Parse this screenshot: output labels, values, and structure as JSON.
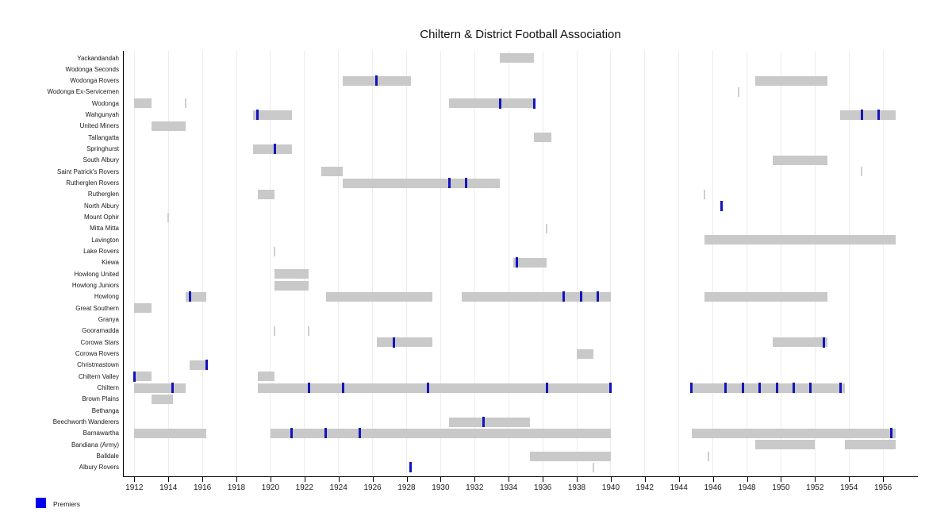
{
  "page": {
    "title": "Chiltern & District Football Association"
  },
  "chart_data": {
    "type": "gantt",
    "title": "Chiltern & District Football Association",
    "xlabel": "",
    "ylabel": "",
    "x_axis": {
      "min": 1912,
      "max": 1956,
      "tick_step": 2,
      "ticks": [
        1912,
        1914,
        1916,
        1918,
        1920,
        1922,
        1924,
        1926,
        1928,
        1930,
        1932,
        1934,
        1936,
        1938,
        1940,
        1942,
        1944,
        1946,
        1948,
        1950,
        1952,
        1954,
        1956
      ]
    },
    "legend": {
      "label": "Premiers",
      "color": "#0000ee",
      "position": "bottom-left"
    },
    "grid": "vertical-on",
    "colors": {
      "bar": "#c9c9c9",
      "thin_bar": "#cfcfcf",
      "premier": "#1414bd",
      "grid": "#ededed",
      "axis": "#000000",
      "text": "#1a1a1a"
    },
    "teams": [
      {
        "name": "Yackandandah",
        "segments": [
          [
            1933.5,
            1935.5
          ]
        ],
        "premiers": []
      },
      {
        "name": "Wodonga Seconds",
        "segments": [],
        "premiers": []
      },
      {
        "name": "Wodonga Rovers",
        "segments": [
          [
            1924.25,
            1928.25
          ],
          [
            1948.5,
            1952.75
          ]
        ],
        "premiers": [
          1926.25
        ]
      },
      {
        "name": "Wodonga Ex-Servicemen",
        "segments": [
          [
            1947.5,
            1947.5
          ]
        ],
        "premiers": []
      },
      {
        "name": "Wodonga",
        "segments": [
          [
            1912,
            1913
          ],
          [
            1915,
            1915
          ],
          [
            1930.5,
            1935.5
          ]
        ],
        "premiers": [
          1933.5,
          1935.5
        ]
      },
      {
        "name": "Wahgunyah",
        "segments": [
          [
            1919,
            1921.25
          ],
          [
            1953.5,
            1956.75
          ]
        ],
        "premiers": [
          1919.25,
          1954.75,
          1955.75
        ]
      },
      {
        "name": "United Miners",
        "segments": [
          [
            1913,
            1915
          ]
        ],
        "premiers": []
      },
      {
        "name": "Tallangatta",
        "segments": [
          [
            1935.5,
            1936.5
          ]
        ],
        "premiers": []
      },
      {
        "name": "Springhurst",
        "segments": [
          [
            1919,
            1921.25
          ]
        ],
        "premiers": [
          1920.25
        ]
      },
      {
        "name": "South Albury",
        "segments": [
          [
            1949.5,
            1952.75
          ]
        ],
        "premiers": []
      },
      {
        "name": "Saint Patrick's Rovers",
        "segments": [
          [
            1923,
            1924.25
          ],
          [
            1954.75,
            1954.75
          ]
        ],
        "premiers": []
      },
      {
        "name": "Rutherglen Rovers",
        "segments": [
          [
            1924.25,
            1933.5
          ]
        ],
        "premiers": [
          1930.5,
          1931.5
        ]
      },
      {
        "name": "Rutherglen",
        "segments": [
          [
            1919.25,
            1920.25
          ],
          [
            1945.5,
            1945.5
          ]
        ],
        "premiers": []
      },
      {
        "name": "North Albury",
        "segments": [],
        "premiers": [
          1946.5
        ]
      },
      {
        "name": "Mount Ophir",
        "segments": [
          [
            1914,
            1914
          ]
        ],
        "premiers": []
      },
      {
        "name": "Mitta Mitta",
        "segments": [
          [
            1936.25,
            1936.25
          ]
        ],
        "premiers": []
      },
      {
        "name": "Lavington",
        "segments": [
          [
            1945.5,
            1956.75
          ]
        ],
        "premiers": []
      },
      {
        "name": "Lake Rovers",
        "segments": [
          [
            1920.25,
            1920.25
          ]
        ],
        "premiers": []
      },
      {
        "name": "Kiewa",
        "segments": [
          [
            1934.25,
            1936.25
          ]
        ],
        "premiers": [
          1934.5
        ]
      },
      {
        "name": "Howlong United",
        "segments": [
          [
            1920.25,
            1922.25
          ]
        ],
        "premiers": []
      },
      {
        "name": "Howlong Juniors",
        "segments": [
          [
            1920.25,
            1922.25
          ]
        ],
        "premiers": []
      },
      {
        "name": "Howlong",
        "segments": [
          [
            1915,
            1916.25
          ],
          [
            1923.25,
            1929.5
          ],
          [
            1931.25,
            1940
          ],
          [
            1945.5,
            1952.75
          ]
        ],
        "premiers": [
          1915.25,
          1937.25,
          1938.25,
          1939.25
        ]
      },
      {
        "name": "Great Southern",
        "segments": [
          [
            1912,
            1913
          ]
        ],
        "premiers": []
      },
      {
        "name": "Granya",
        "segments": [],
        "premiers": []
      },
      {
        "name": "Gooramadda",
        "segments": [
          [
            1920.25,
            1920.25
          ],
          [
            1922.25,
            1922.25
          ]
        ],
        "premiers": []
      },
      {
        "name": "Corowa Stars",
        "segments": [
          [
            1926.25,
            1929.5
          ],
          [
            1949.5,
            1952.75
          ]
        ],
        "premiers": [
          1927.25,
          1952.5
        ]
      },
      {
        "name": "Corowa Rovers",
        "segments": [
          [
            1938,
            1939
          ]
        ],
        "premiers": []
      },
      {
        "name": "Christmastown",
        "segments": [
          [
            1915.25,
            1916.25
          ]
        ],
        "premiers": [
          1916.25
        ]
      },
      {
        "name": "Chiltern Valley",
        "segments": [
          [
            1912,
            1913
          ],
          [
            1919.25,
            1920.25
          ]
        ],
        "premiers": [
          1912
        ]
      },
      {
        "name": "Chiltern",
        "segments": [
          [
            1912,
            1915
          ],
          [
            1919.25,
            1940
          ],
          [
            1944.75,
            1953.75
          ]
        ],
        "premiers": [
          1914.25,
          1922.25,
          1924.25,
          1929.25,
          1936.25,
          1940,
          1944.75,
          1946.75,
          1947.75,
          1948.75,
          1949.75,
          1950.75,
          1951.75,
          1953.5
        ]
      },
      {
        "name": "Brown Plains",
        "segments": [
          [
            1913,
            1914.25
          ]
        ],
        "premiers": []
      },
      {
        "name": "Bethanga",
        "segments": [],
        "premiers": []
      },
      {
        "name": "Beechworth Wanderers",
        "segments": [
          [
            1930.5,
            1935.25
          ]
        ],
        "premiers": [
          1932.5
        ]
      },
      {
        "name": "Barnawartha",
        "segments": [
          [
            1912,
            1916.25
          ],
          [
            1920,
            1940
          ],
          [
            1944.75,
            1956.75
          ]
        ],
        "premiers": [
          1921.25,
          1923.25,
          1925.25,
          1956.5
        ]
      },
      {
        "name": "Bandiana (Army)",
        "segments": [
          [
            1948.5,
            1952
          ],
          [
            1953.75,
            1956.75
          ]
        ],
        "premiers": []
      },
      {
        "name": "Balldale",
        "segments": [
          [
            1935.25,
            1940
          ],
          [
            1945.75,
            1945.75
          ]
        ],
        "premiers": []
      },
      {
        "name": "Albury Rovers",
        "segments": [
          [
            1939,
            1939
          ]
        ],
        "premiers": [
          1928.25
        ]
      }
    ]
  }
}
